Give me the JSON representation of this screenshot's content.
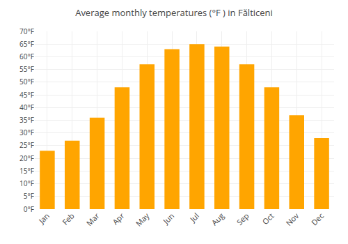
{
  "chart_data": {
    "type": "bar",
    "title": "Average monthly temperatures (°F ) in Fălticeni",
    "categories": [
      "Jan",
      "Feb",
      "Mar",
      "Apr",
      "May",
      "Jun",
      "Jul",
      "Aug",
      "Sep",
      "Oct",
      "Nov",
      "Dec"
    ],
    "values": [
      23,
      27,
      36,
      48,
      57,
      63,
      65,
      64,
      57,
      48,
      37,
      28
    ],
    "color": "#FFA500",
    "ylim": [
      0,
      70
    ],
    "yticks": [
      {
        "value": 0,
        "label": "0°F"
      },
      {
        "value": 5,
        "label": "5°F"
      },
      {
        "value": 10,
        "label": "10°F"
      },
      {
        "value": 15,
        "label": "15°F"
      },
      {
        "value": 20,
        "label": "20°F"
      },
      {
        "value": 25,
        "label": "25°F"
      },
      {
        "value": 30,
        "label": "30°F"
      },
      {
        "value": 35,
        "label": "35°F"
      },
      {
        "value": 40,
        "label": "40°F"
      },
      {
        "value": 45,
        "label": "45°F"
      },
      {
        "value": 50,
        "label": "50°F"
      },
      {
        "value": 55,
        "label": "55°F"
      },
      {
        "value": 60,
        "label": "60°F"
      },
      {
        "value": 65,
        "label": "65°F"
      },
      {
        "value": 70,
        "label": "70°F"
      }
    ],
    "grid": true
  }
}
